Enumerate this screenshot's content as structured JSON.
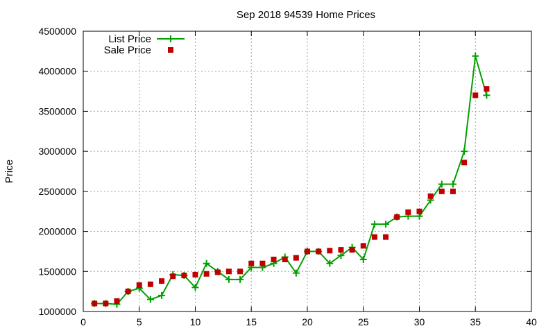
{
  "chart_data": {
    "type": "line",
    "title": "Sep 2018 94539 Home Prices",
    "xlabel": "",
    "ylabel": "Price",
    "xlim": [
      0,
      40
    ],
    "ylim": [
      1000000,
      4500000
    ],
    "xticks": [
      0,
      5,
      10,
      15,
      20,
      25,
      30,
      35,
      40
    ],
    "yticks": [
      1000000,
      1500000,
      2000000,
      2500000,
      3000000,
      3500000,
      4000000,
      4500000
    ],
    "grid": true,
    "legend_position": "top-left",
    "x": [
      1,
      2,
      3,
      4,
      5,
      6,
      7,
      8,
      9,
      10,
      11,
      12,
      13,
      14,
      15,
      16,
      17,
      18,
      19,
      20,
      21,
      22,
      23,
      24,
      25,
      26,
      27,
      28,
      29,
      30,
      31,
      32,
      33,
      34,
      35,
      36
    ],
    "series": [
      {
        "name": "List Price",
        "color": "#00a000",
        "marker": "plus",
        "style": "line",
        "values": [
          1100000,
          1100000,
          1090000,
          1250000,
          1290000,
          1150000,
          1200000,
          1460000,
          1450000,
          1300000,
          1600000,
          1500000,
          1400000,
          1400000,
          1550000,
          1550000,
          1600000,
          1680000,
          1480000,
          1750000,
          1750000,
          1600000,
          1700000,
          1800000,
          1650000,
          2090000,
          2090000,
          2180000,
          2190000,
          2190000,
          2390000,
          2590000,
          2590000,
          3000000,
          4190000,
          3700000
        ]
      },
      {
        "name": "Sale Price",
        "color": "#c00000",
        "marker": "square",
        "style": "points",
        "values": [
          1100000,
          1100000,
          1130000,
          1250000,
          1330000,
          1340000,
          1380000,
          1440000,
          1450000,
          1460000,
          1470000,
          1490000,
          1500000,
          1500000,
          1600000,
          1600000,
          1650000,
          1650000,
          1670000,
          1750000,
          1750000,
          1760000,
          1770000,
          1770000,
          1820000,
          1930000,
          1930000,
          2180000,
          2240000,
          2250000,
          2440000,
          2500000,
          2500000,
          2860000,
          3700000,
          3780000
        ]
      }
    ]
  }
}
